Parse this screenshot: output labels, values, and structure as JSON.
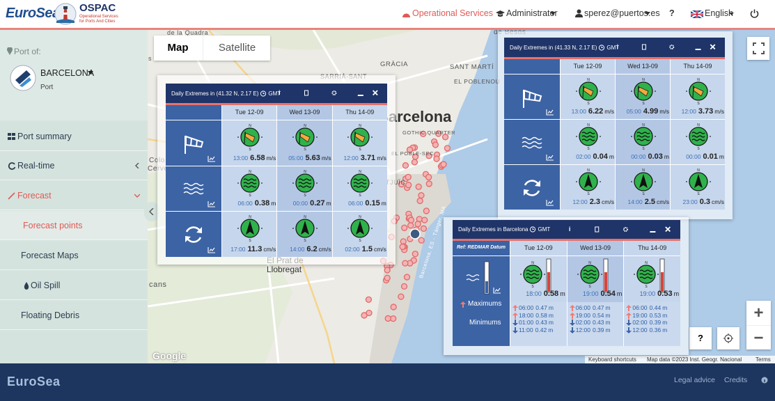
{
  "header": {
    "brand": "EuroSea",
    "ospac": "OSPAC",
    "ospac_sub": [
      "Operational Services",
      "for Ports And Cities"
    ],
    "nav": [
      "Operational Services",
      "Administrator",
      "sperez@puertos.es",
      "?",
      "English"
    ]
  },
  "sidebar": {
    "port_of": "Port of:",
    "port_name": "BARCELONA",
    "port_type": "Port",
    "menu": [
      "Port summary",
      "Real-time",
      "Forecast",
      "Forecast points",
      "Forecast Maps",
      "Oil Spill",
      "Floating Debris"
    ]
  },
  "map": {
    "tabs": [
      "Map",
      "Satellite"
    ],
    "labels": [
      "de la Quadra",
      "s de Rei",
      "SARRIÀ-SANT",
      "GRÀCIA",
      "SANT MARTÍ",
      "EL POBLENOU",
      "de Besòs",
      "Barcelona",
      "GOTHIC QUARTER",
      "EL POBLE-SEC",
      "TJUÏC",
      "Colo",
      "Cervel",
      "El Prat de",
      "Llobregat",
      "cans",
      "Barcelona, ES - Tánger, MA"
    ],
    "google": "Google",
    "attribution": [
      "Keyboard shortcuts",
      "Map data ©2023 Inst. Geogr. Nacional",
      "Terms"
    ],
    "help": "?",
    "zoom": [
      "+",
      "−"
    ]
  },
  "compass": [
    "N",
    "S"
  ],
  "panels": [
    {
      "title": "Daily Extremes in (41.32 N, 2.17 E)",
      "tz": "GMT",
      "info": "i",
      "days": [
        "Tue 12-09",
        "Wed 13-09",
        "Thu 14-09"
      ],
      "rows": [
        {
          "unit": "m/s",
          "cells": [
            {
              "time": "13:00",
              "value": 6.58
            },
            {
              "time": "05:00",
              "value": 5.63
            },
            {
              "time": "12:00",
              "value": 3.71
            }
          ]
        },
        {
          "unit": "m",
          "cells": [
            {
              "time": "06:00",
              "value": 0.38
            },
            {
              "time": "00:00",
              "value": 0.27
            },
            {
              "time": "06:00",
              "value": 0.15
            }
          ]
        },
        {
          "unit": "cm/s",
          "cells": [
            {
              "time": "17:00",
              "value": 11.3
            },
            {
              "time": "14:00",
              "value": 6.2
            },
            {
              "time": "02:00",
              "value": 1.5
            }
          ]
        }
      ]
    },
    {
      "title": "Daily Extremes in (41.33 N, 2.17 E)",
      "tz": "GMT",
      "info": "i",
      "days": [
        "Tue 12-09",
        "Wed 13-09",
        "Thu 14-09"
      ],
      "rows": [
        {
          "unit": "m/s",
          "cells": [
            {
              "time": "13:00",
              "value": 6.22
            },
            {
              "time": "05:00",
              "value": 4.99
            },
            {
              "time": "12:00",
              "value": 3.73
            }
          ]
        },
        {
          "unit": "m",
          "cells": [
            {
              "time": "02:00",
              "value": 0.04
            },
            {
              "time": "00:00",
              "value": 0.03
            },
            {
              "time": "00:00",
              "value": 0.01
            }
          ]
        },
        {
          "unit": "cm/s",
          "cells": [
            {
              "time": "12:00",
              "value": 2.3
            },
            {
              "time": "14:00",
              "value": 2.5
            },
            {
              "time": "23:00",
              "value": 0.3
            }
          ]
        }
      ]
    }
  ],
  "tide_panel": {
    "title": "Daily Extremes in Barcelona",
    "tz": "GMT",
    "info": "i",
    "ref": "Ref: REDMAR Datum",
    "days": [
      "Tue 12-09",
      "Wed 13-09",
      "Thu 14-09"
    ],
    "unit": "m",
    "legend": [
      "Maximums",
      "Minimums"
    ],
    "main": [
      {
        "time": "18:00",
        "value": 0.58
      },
      {
        "time": "19:00",
        "value": 0.54
      },
      {
        "time": "19:00",
        "value": 0.53
      }
    ],
    "extremes": [
      {
        "max": [
          {
            "time": "06:00",
            "value": 0.47
          },
          {
            "time": "18:00",
            "value": 0.58
          }
        ],
        "min": [
          {
            "time": "01:00",
            "value": 0.43
          },
          {
            "time": "11:00",
            "value": 0.42
          }
        ]
      },
      {
        "max": [
          {
            "time": "06:00",
            "value": 0.47
          },
          {
            "time": "19:00",
            "value": 0.54
          }
        ],
        "min": [
          {
            "time": "02:00",
            "value": 0.43
          },
          {
            "time": "12:00",
            "value": 0.39
          }
        ]
      },
      {
        "max": [
          {
            "time": "06:00",
            "value": 0.44
          },
          {
            "time": "19:00",
            "value": 0.53
          }
        ],
        "min": [
          {
            "time": "02:00",
            "value": 0.39
          },
          {
            "time": "12:00",
            "value": 0.36
          }
        ]
      }
    ]
  },
  "footer": {
    "brand": "EuroSea",
    "links": [
      "Legal advice",
      "Credits"
    ]
  }
}
